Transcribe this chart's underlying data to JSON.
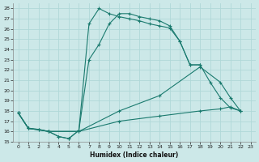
{
  "xlabel": "Humidex (Indice chaleur)",
  "bg_color": "#cce8e8",
  "line_color": "#1a7a6e",
  "grid_color": "#b0d8d8",
  "xlim": [
    -0.5,
    23.5
  ],
  "ylim": [
    15,
    28.5
  ],
  "yticks": [
    15,
    16,
    17,
    18,
    19,
    20,
    21,
    22,
    23,
    24,
    25,
    26,
    27,
    28
  ],
  "xticks": [
    0,
    1,
    2,
    3,
    4,
    5,
    6,
    7,
    8,
    9,
    10,
    11,
    12,
    13,
    14,
    15,
    16,
    17,
    18,
    19,
    20,
    21,
    22,
    23
  ],
  "curve1_x": [
    0,
    1,
    2,
    3,
    4,
    5,
    6,
    7,
    8,
    9,
    10,
    11,
    12,
    13,
    14,
    15,
    16,
    17,
    18,
    19,
    20,
    21,
    22
  ],
  "curve1_y": [
    17.8,
    16.3,
    16.2,
    16.0,
    15.5,
    15.3,
    16.1,
    26.5,
    28.0,
    27.5,
    27.2,
    27.0,
    26.8,
    26.5,
    26.3,
    26.1,
    24.8,
    22.5,
    22.5,
    20.8,
    19.3,
    18.3,
    18.0
  ],
  "curve2_x": [
    0,
    1,
    2,
    3,
    4,
    5,
    6,
    7,
    8,
    9,
    10,
    11,
    12,
    13,
    14,
    15,
    16,
    17,
    18
  ],
  "curve2_y": [
    17.8,
    16.3,
    16.2,
    16.0,
    15.5,
    15.3,
    16.1,
    23.0,
    24.5,
    26.5,
    27.5,
    27.5,
    27.2,
    27.0,
    26.8,
    26.3,
    24.8,
    22.5,
    22.5
  ],
  "curve3_x": [
    0,
    1,
    3,
    6,
    10,
    14,
    18,
    20,
    21,
    22
  ],
  "curve3_y": [
    17.8,
    16.3,
    16.0,
    16.0,
    18.0,
    19.5,
    22.3,
    20.8,
    19.3,
    18.0
  ],
  "curve4_x": [
    0,
    1,
    3,
    6,
    10,
    14,
    18,
    20,
    21,
    22
  ],
  "curve4_y": [
    17.8,
    16.3,
    16.0,
    16.0,
    17.0,
    17.5,
    18.0,
    18.2,
    18.4,
    18.0
  ]
}
